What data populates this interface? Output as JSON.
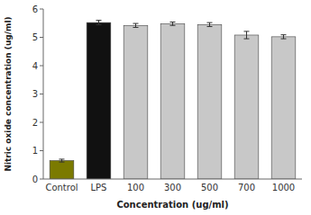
{
  "chart_data": {
    "type": "bar",
    "categories": [
      "Control",
      "LPS",
      "100",
      "300",
      "500",
      "700",
      "1000"
    ],
    "values": [
      0.65,
      5.52,
      5.42,
      5.48,
      5.45,
      5.08,
      5.02
    ],
    "errors": [
      0.05,
      0.08,
      0.07,
      0.06,
      0.07,
      0.13,
      0.07
    ],
    "colors": [
      "#7b7a00",
      "#111111",
      "#c8c8c8",
      "#c8c8c8",
      "#c8c8c8",
      "#c8c8c8",
      "#c8c8c8"
    ],
    "xlabel": "Concentration (ug/ml)",
    "ylabel": "Nitric oxide concentration (ug/ml)",
    "ylim": [
      0,
      6
    ],
    "yticks": [
      0,
      1,
      2,
      3,
      4,
      5,
      6
    ],
    "grid": false
  }
}
